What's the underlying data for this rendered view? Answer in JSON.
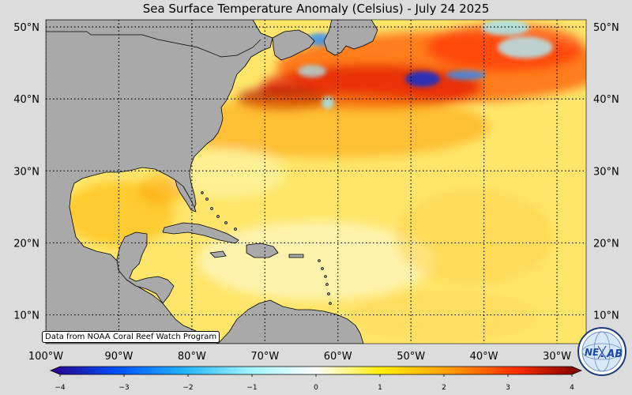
{
  "title": "Sea Surface Temperature Anomaly (Celsius) - July 24 2025",
  "credit": "Data from NOAA Coral Reef Watch Program",
  "logo": {
    "text_a": "NE",
    "text_b": "LAB",
    "icon": "nexlab-globe-logo-icon"
  },
  "map": {
    "lon_range": [
      -100,
      -26
    ],
    "lat_range": [
      6,
      51
    ],
    "lat_ticks": [
      {
        "value": 10,
        "label": "10°N"
      },
      {
        "value": 20,
        "label": "20°N"
      },
      {
        "value": 30,
        "label": "30°N"
      },
      {
        "value": 40,
        "label": "40°N"
      },
      {
        "value": 50,
        "label": "50°N"
      }
    ],
    "lon_ticks": [
      {
        "value": -100,
        "label": "100°W"
      },
      {
        "value": -90,
        "label": "90°W"
      },
      {
        "value": -80,
        "label": "80°W"
      },
      {
        "value": -70,
        "label": "70°W"
      },
      {
        "value": -60,
        "label": "60°W"
      },
      {
        "value": -50,
        "label": "50°W"
      },
      {
        "value": -40,
        "label": "40°W"
      },
      {
        "value": -30,
        "label": "30°W"
      }
    ],
    "colors": {
      "land": "#a9a9a9",
      "ocean_base": "#ffe66a",
      "coastline": "#000000"
    }
  },
  "colorbar": {
    "min": -4,
    "max": 4,
    "ticks": [
      {
        "value": -4,
        "label": "−4"
      },
      {
        "value": -3,
        "label": "−3"
      },
      {
        "value": -2,
        "label": "−2"
      },
      {
        "value": -1,
        "label": "−1"
      },
      {
        "value": 0,
        "label": "0"
      },
      {
        "value": 1,
        "label": "1"
      },
      {
        "value": 2,
        "label": "2"
      },
      {
        "value": 3,
        "label": "3"
      },
      {
        "value": 4,
        "label": "4"
      }
    ],
    "stops": [
      "#2a0084",
      "#0050ff",
      "#22b2ff",
      "#9ef5ff",
      "#ffffff",
      "#ffee00",
      "#ff9d00",
      "#ff2d00",
      "#7a0000"
    ]
  }
}
